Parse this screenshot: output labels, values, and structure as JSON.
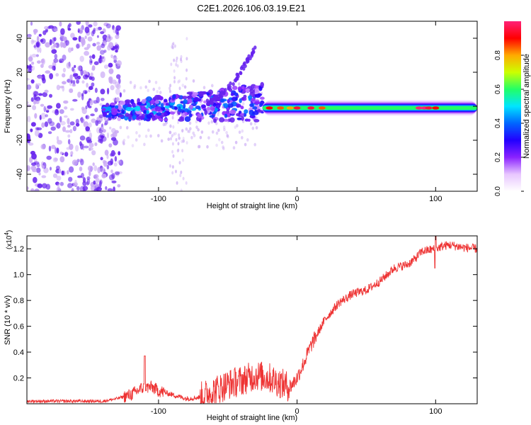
{
  "title": "C2E1.2026.106.03.19.E21",
  "colors": {
    "snr_line": "#ee3333",
    "scatter": "#6622ee",
    "scatter_light": "#c9a8f5",
    "colormap": [
      "#ffffff",
      "#e8c6ff",
      "#8a22ff",
      "#2200ff",
      "#0066ff",
      "#00e5ff",
      "#22ff66",
      "#ccff00",
      "#ffaa00",
      "#ff0000",
      "#ff2277"
    ]
  },
  "chart_data": [
    {
      "type": "heatmap",
      "title": "C2E1.2026.106.03.19.E21",
      "xlabel": "Height of straight line (km)",
      "ylabel": "Frequency (Hz)",
      "xlim": [
        -195,
        130
      ],
      "ylim": [
        -50,
        50
      ],
      "xticks": [
        -100,
        0,
        100
      ],
      "xtick_labels": [
        "-100",
        "0",
        "100"
      ],
      "yticks": [
        -40,
        -20,
        0,
        20,
        40
      ],
      "ytick_labels": [
        "-40",
        "-20",
        "0",
        "20",
        "40"
      ],
      "colorbar": {
        "label": "Normalized spectral amplitude",
        "range": [
          0.0,
          1.0
        ],
        "ticks": [
          0.0,
          0.2,
          0.4,
          0.6,
          0.8
        ],
        "tick_labels": [
          "0.0",
          "0.2",
          "0.4",
          "0.6",
          "0.8"
        ]
      },
      "band": {
        "description": "narrow band centred near 0 Hz",
        "segments": [
          {
            "x": [
              -140,
              -25
            ],
            "center_freq": [
              -3,
              2
            ],
            "amplitude": 0.3
          },
          {
            "x": [
              -25,
              130
            ],
            "center_freq": [
              -1,
              -1
            ],
            "amplitude": 0.6
          }
        ]
      },
      "drift_branch": {
        "x": [
          -65,
          -30
        ],
        "freq": [
          2,
          35
        ]
      },
      "noise_region_x": [
        -195,
        -135
      ]
    },
    {
      "type": "line",
      "xlabel": "Height of straight line (km)",
      "ylabel": "SNR (10 * v/v)",
      "y_multiplier_label": "(x10",
      "y_multiplier_exp": "4",
      "xlim": [
        -195,
        130
      ],
      "ylim": [
        0,
        1.3
      ],
      "xticks": [
        -100,
        0,
        100
      ],
      "xtick_labels": [
        "-100",
        "0",
        "100"
      ],
      "yticks": [
        0.2,
        0.4,
        0.6,
        0.8,
        1.0,
        1.2
      ],
      "ytick_labels": [
        "0.2",
        "0.4",
        "0.6",
        "0.8",
        "1.0",
        "1.2"
      ],
      "series": [
        {
          "name": "SNR",
          "x": [
            -195,
            -140,
            -130,
            -120,
            -112,
            -105,
            -100,
            -90,
            -80,
            -70,
            -60,
            -50,
            -40,
            -30,
            -20,
            -10,
            -5,
            0,
            5,
            10,
            15,
            20,
            30,
            40,
            50,
            60,
            65,
            70,
            80,
            85,
            90,
            100,
            105,
            110,
            120,
            130
          ],
          "y": [
            0.02,
            0.02,
            0.04,
            0.07,
            0.12,
            0.13,
            0.1,
            0.07,
            0.04,
            0.05,
            0.1,
            0.15,
            0.18,
            0.22,
            0.2,
            0.15,
            0.13,
            0.2,
            0.32,
            0.45,
            0.55,
            0.65,
            0.78,
            0.85,
            0.88,
            0.95,
            1.0,
            1.05,
            1.08,
            1.12,
            1.18,
            1.2,
            1.22,
            1.23,
            1.21,
            1.2
          ]
        }
      ]
    }
  ]
}
